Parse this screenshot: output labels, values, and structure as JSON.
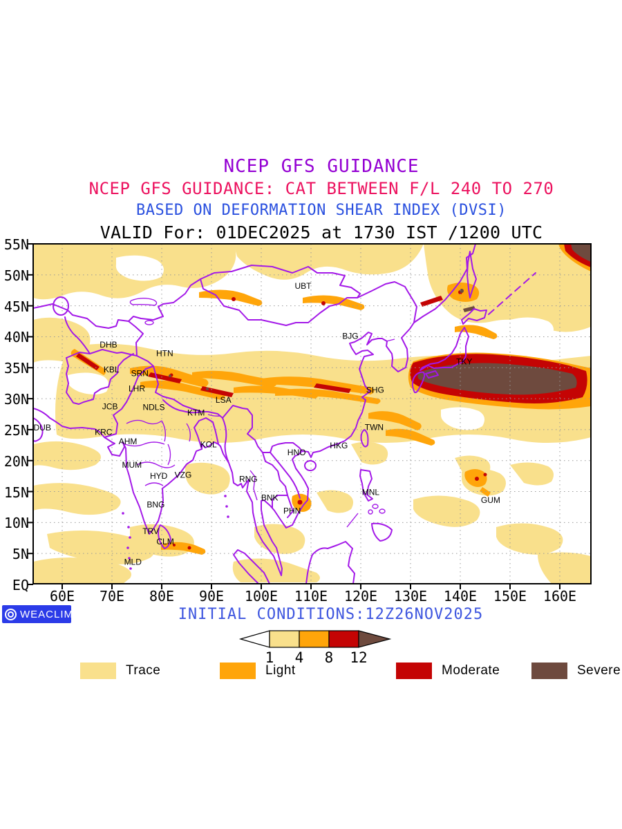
{
  "titles": [
    {
      "text": "NCEP GFS GUIDANCE",
      "color": "#9400D3"
    },
    {
      "text": "NCEP GFS GUIDANCE: CAT BETWEEN F/L 240 TO 270",
      "color": "#EC125F"
    },
    {
      "text": "BASED ON DEFORMATION SHEAR INDEX (DVSI)",
      "color": "#2A50DF"
    },
    {
      "text": "VALID For: 01DEC2025 at 1730 IST /1200 UTC",
      "color": "#000000"
    }
  ],
  "map": {
    "x_axis": {
      "ticks": [
        {
          "lon": 60,
          "label": "60E"
        },
        {
          "lon": 70,
          "label": "70E"
        },
        {
          "lon": 80,
          "label": "80E"
        },
        {
          "lon": 90,
          "label": "90E"
        },
        {
          "lon": 100,
          "label": "100E"
        },
        {
          "lon": 110,
          "label": "110E"
        },
        {
          "lon": 120,
          "label": "120E"
        },
        {
          "lon": 130,
          "label": "130E"
        },
        {
          "lon": 140,
          "label": "140E"
        },
        {
          "lon": 150,
          "label": "150E"
        },
        {
          "lon": 160,
          "label": "160E"
        }
      ]
    },
    "y_axis": {
      "ticks": [
        {
          "lat": 0,
          "label": "EQ"
        },
        {
          "lat": 5,
          "label": "5N"
        },
        {
          "lat": 10,
          "label": "10N"
        },
        {
          "lat": 15,
          "label": "15N"
        },
        {
          "lat": 20,
          "label": "20N"
        },
        {
          "lat": 25,
          "label": "25N"
        },
        {
          "lat": 30,
          "label": "30N"
        },
        {
          "lat": 35,
          "label": "35N"
        },
        {
          "lat": 40,
          "label": "40N"
        },
        {
          "lat": 45,
          "label": "45N"
        },
        {
          "lat": 50,
          "label": "50N"
        },
        {
          "lat": 55,
          "label": "55N"
        }
      ]
    },
    "grid": {
      "lons": [
        60,
        70,
        80,
        90,
        100,
        110,
        120,
        130,
        140,
        150,
        160
      ],
      "lats": [
        5,
        10,
        15,
        20,
        25,
        30,
        35,
        40,
        45,
        50
      ]
    },
    "stations": [
      {
        "code": "DHB",
        "lon": 69.3,
        "lat": 38.7
      },
      {
        "code": "HTN",
        "lon": 80.6,
        "lat": 37.3
      },
      {
        "code": "KBL",
        "lon": 69.9,
        "lat": 34.7
      },
      {
        "code": "SRN",
        "lon": 75.6,
        "lat": 34.1
      },
      {
        "code": "LHR",
        "lon": 75.0,
        "lat": 31.6
      },
      {
        "code": "JCB",
        "lon": 69.6,
        "lat": 28.7
      },
      {
        "code": "NDLS",
        "lon": 78.4,
        "lat": 28.6
      },
      {
        "code": "KTM",
        "lon": 86.9,
        "lat": 27.7
      },
      {
        "code": "LSA",
        "lon": 92.4,
        "lat": 29.8
      },
      {
        "code": "DUB",
        "lon": 56.0,
        "lat": 25.3
      },
      {
        "code": "KRC",
        "lon": 68.3,
        "lat": 24.6
      },
      {
        "code": "AHM",
        "lon": 73.2,
        "lat": 23.1
      },
      {
        "code": "KOL",
        "lon": 89.4,
        "lat": 22.6
      },
      {
        "code": "MUM",
        "lon": 74.0,
        "lat": 19.3
      },
      {
        "code": "HYD",
        "lon": 79.4,
        "lat": 17.5
      },
      {
        "code": "VZG",
        "lon": 84.3,
        "lat": 17.7
      },
      {
        "code": "BNG",
        "lon": 78.8,
        "lat": 12.9
      },
      {
        "code": "TRV",
        "lon": 77.8,
        "lat": 8.6
      },
      {
        "code": "CLM",
        "lon": 80.7,
        "lat": 6.9
      },
      {
        "code": "MLD",
        "lon": 74.2,
        "lat": 3.6
      },
      {
        "code": "UBT",
        "lon": 108.4,
        "lat": 48.2
      },
      {
        "code": "BJG",
        "lon": 117.9,
        "lat": 40.1
      },
      {
        "code": "SHG",
        "lon": 122.9,
        "lat": 31.4
      },
      {
        "code": "TWN",
        "lon": 122.7,
        "lat": 25.4
      },
      {
        "code": "HKG",
        "lon": 115.6,
        "lat": 22.4
      },
      {
        "code": "HNO",
        "lon": 107.1,
        "lat": 21.3
      },
      {
        "code": "RNG",
        "lon": 97.4,
        "lat": 17.0
      },
      {
        "code": "BNK",
        "lon": 101.7,
        "lat": 14.0
      },
      {
        "code": "PHN",
        "lon": 106.2,
        "lat": 11.9
      },
      {
        "code": "MNL",
        "lon": 122.0,
        "lat": 14.9
      },
      {
        "code": "GUM",
        "lon": 146.1,
        "lat": 13.6
      },
      {
        "code": "TKY",
        "lon": 140.8,
        "lat": 36.0
      }
    ],
    "dvsi_scale": {
      "levels": [
        1,
        4,
        8,
        12
      ],
      "categories": [
        "Trace",
        "Light",
        "Moderate",
        "Severe"
      ]
    }
  },
  "colorbar": {
    "labels": [
      "1",
      "4",
      "8",
      "12"
    ],
    "segment_colors": [
      "#FFFFFF",
      "#F9E08C",
      "#FFA50A",
      "#C40404"
    ],
    "arrow_color": "#6E4A3E"
  },
  "legend": {
    "items": [
      {
        "label": "Trace",
        "color": "#F9E08C"
      },
      {
        "label": "Light",
        "color": "#FFA50A"
      },
      {
        "label": "Moderate",
        "color": "#C40404"
      },
      {
        "label": "Severe",
        "color": "#6E4A3E"
      }
    ]
  },
  "footer": {
    "logo_text": "WEACLIM",
    "logo_bg": "#2B3BE8",
    "initial_conditions": "INITIAL CONDITIONS:12Z26NOV2025",
    "initial_conditions_color": "#3D55DF"
  },
  "palette": {
    "trace": "#F9E08C",
    "light": "#FFA50A",
    "moderate": "#C40404",
    "severe": "#6E4A3E",
    "border": "#A318E8",
    "grid": "#999999"
  }
}
